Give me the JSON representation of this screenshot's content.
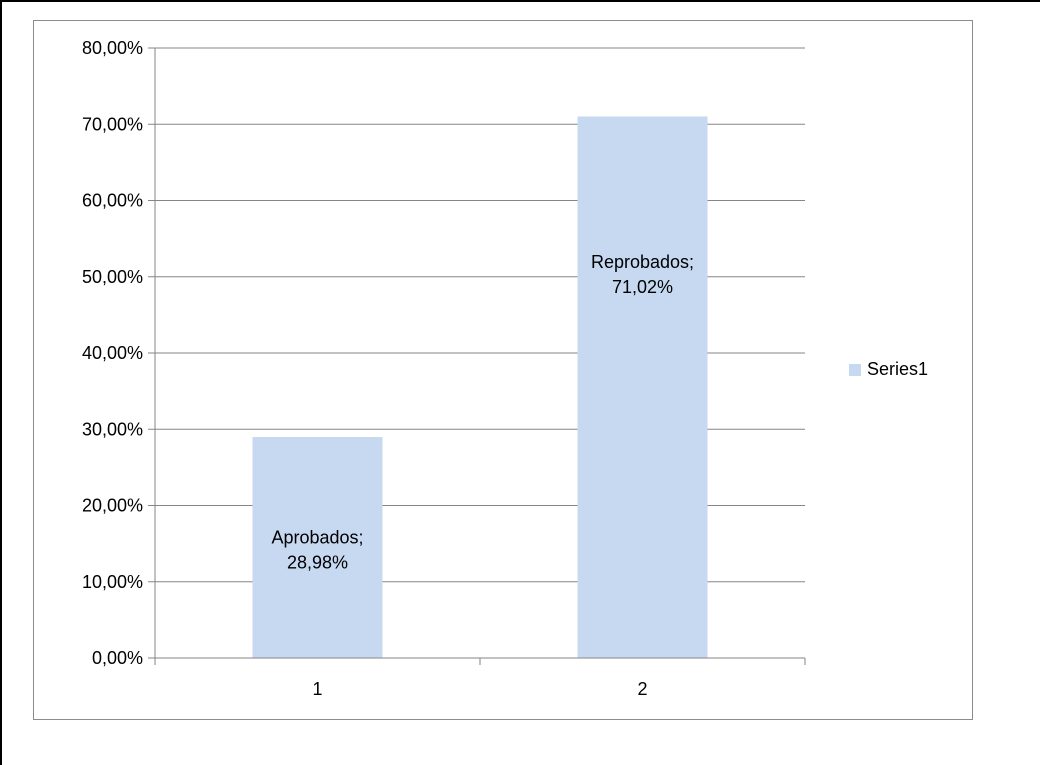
{
  "chart_data": {
    "type": "bar",
    "categories": [
      "1",
      "2"
    ],
    "series": [
      {
        "name": "Series1",
        "values": [
          28.98,
          71.02
        ],
        "data_labels": [
          "Aprobados;\n28,98%",
          "Reprobados;\n71,02%"
        ]
      }
    ],
    "title": "",
    "xlabel": "",
    "ylabel": "",
    "ylim": [
      0,
      80
    ],
    "y_ticks": [
      0,
      10,
      20,
      30,
      40,
      50,
      60,
      70,
      80
    ],
    "y_tick_labels": [
      "0,00%",
      "10,00%",
      "20,00%",
      "30,00%",
      "40,00%",
      "50,00%",
      "60,00%",
      "70,00%",
      "80,00%"
    ],
    "grid": true,
    "legend": {
      "position": "right",
      "entries": [
        "Series1"
      ]
    },
    "colors": {
      "bar": "#c6d9f1",
      "grid": "#868686",
      "axis": "#868686",
      "text": "#000000"
    }
  }
}
